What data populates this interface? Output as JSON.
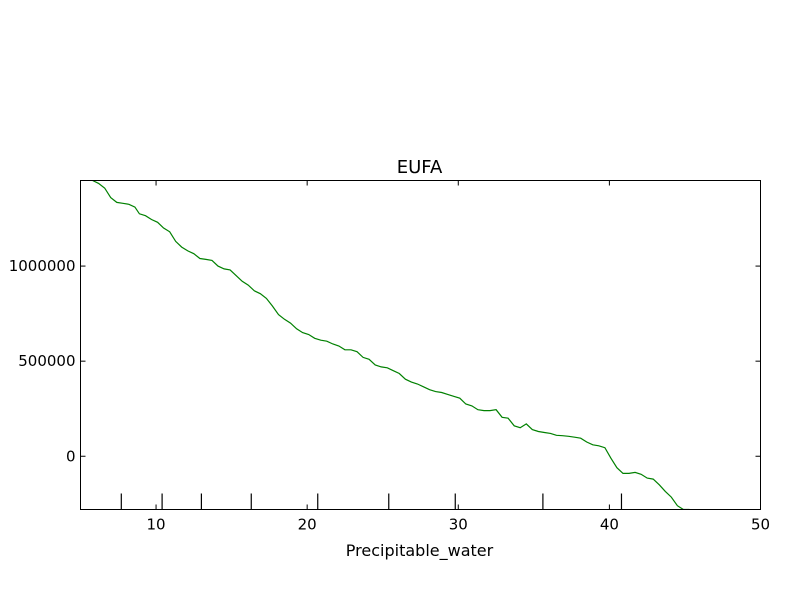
{
  "chart_data": {
    "type": "line",
    "title": "EUFA",
    "xlabel": "Precipitable_water",
    "ylabel": "",
    "xlim": [
      5,
      50
    ],
    "ylim": [
      -280000,
      1450000
    ],
    "xticks": [
      10,
      20,
      30,
      40,
      50
    ],
    "xtick_labels": [
      "10",
      "20",
      "30",
      "40",
      "50"
    ],
    "yticks": [
      0,
      500000,
      1000000
    ],
    "ytick_labels": [
      "0",
      "500000",
      "1000000"
    ],
    "rug_x": [
      7.7,
      10.4,
      13.0,
      16.3,
      20.7,
      25.4,
      29.8,
      35.6,
      40.8
    ],
    "grid": false,
    "series": [
      {
        "color": "#008000",
        "x": [
          5.8,
          6.2,
          6.6,
          7.0,
          7.4,
          7.8,
          8.2,
          8.6,
          8.9,
          9.3,
          9.7,
          10.1,
          10.5,
          10.9,
          11.3,
          11.7,
          12.1,
          12.5,
          12.9,
          13.3,
          13.7,
          14.1,
          14.5,
          14.9,
          15.3,
          15.7,
          16.1,
          16.5,
          16.9,
          17.3,
          17.7,
          18.1,
          18.5,
          18.9,
          19.3,
          19.7,
          20.1,
          20.5,
          20.9,
          21.3,
          21.7,
          22.1,
          22.5,
          22.9,
          23.3,
          23.7,
          24.1,
          24.5,
          24.9,
          25.3,
          25.7,
          26.1,
          26.5,
          26.9,
          27.3,
          27.7,
          28.1,
          28.5,
          28.9,
          29.3,
          29.7,
          30.1,
          30.5,
          30.9,
          31.3,
          31.7,
          32.1,
          32.5,
          32.9,
          33.3,
          33.7,
          34.1,
          34.5,
          34.9,
          35.3,
          35.7,
          36.1,
          36.5,
          36.9,
          37.3,
          37.7,
          38.1,
          38.5,
          38.9,
          39.3,
          39.7,
          40.1,
          40.5,
          40.9,
          41.3,
          41.7,
          42.1,
          42.5,
          42.9,
          43.3,
          43.7,
          44.1,
          44.5,
          44.9,
          45.3
        ],
        "y": [
          1450000,
          1435000,
          1410000,
          1360000,
          1335000,
          1330000,
          1325000,
          1310000,
          1275000,
          1265000,
          1245000,
          1230000,
          1200000,
          1180000,
          1130000,
          1100000,
          1080000,
          1065000,
          1040000,
          1035000,
          1030000,
          1000000,
          985000,
          980000,
          950000,
          920000,
          900000,
          870000,
          855000,
          830000,
          790000,
          745000,
          720000,
          700000,
          670000,
          650000,
          640000,
          620000,
          610000,
          605000,
          590000,
          580000,
          560000,
          560000,
          550000,
          520000,
          510000,
          480000,
          470000,
          465000,
          450000,
          435000,
          405000,
          390000,
          380000,
          365000,
          350000,
          340000,
          335000,
          325000,
          315000,
          305000,
          275000,
          265000,
          245000,
          240000,
          240000,
          245000,
          205000,
          200000,
          160000,
          150000,
          170000,
          140000,
          130000,
          125000,
          120000,
          110000,
          108000,
          105000,
          100000,
          95000,
          75000,
          60000,
          55000,
          45000,
          -10000,
          -60000,
          -90000,
          -90000,
          -85000,
          -95000,
          -115000,
          -120000,
          -150000,
          -185000,
          -215000,
          -260000,
          -280000,
          -280000
        ]
      }
    ]
  }
}
